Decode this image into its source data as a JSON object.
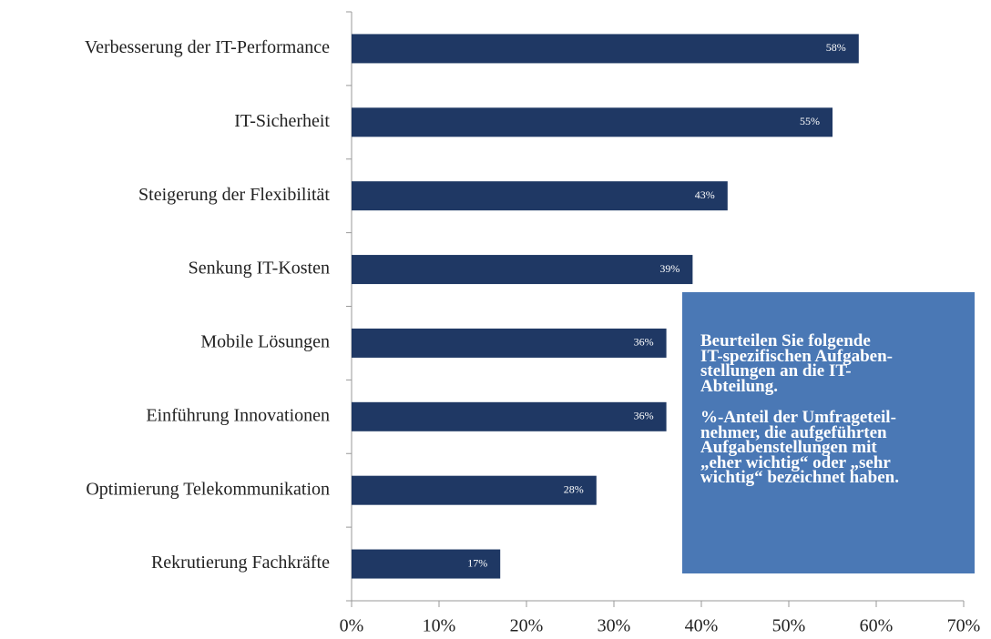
{
  "chart_data": {
    "type": "barh",
    "categories": [
      "Verbesserung der IT-Performance",
      "IT-Sicherheit",
      "Steigerung der Flexibilität",
      "Senkung IT-Kosten",
      "Mobile Lösungen",
      "Einführung Innovationen",
      "Optimierung Telekommunikation",
      "Rekrutierung Fachkräfte"
    ],
    "values": [
      58,
      55,
      43,
      39,
      36,
      36,
      28,
      17
    ],
    "value_labels": [
      "58%",
      "55%",
      "43%",
      "39%",
      "36%",
      "36%",
      "28%",
      "17%"
    ],
    "color": "#1f3864",
    "xlim": [
      0,
      70
    ],
    "xticks": [
      {
        "value": 0,
        "label": "0%"
      },
      {
        "value": 10,
        "label": "10%"
      },
      {
        "value": 20,
        "label": "20%"
      },
      {
        "value": 30,
        "label": "30%"
      },
      {
        "value": 40,
        "label": "40%"
      },
      {
        "value": 50,
        "label": "50%"
      },
      {
        "value": 60,
        "label": "60%"
      },
      {
        "value": 70,
        "label": "70%"
      }
    ],
    "grid": false,
    "annotation": [
      [
        "Beurteilen Sie folgende",
        "IT-spezifischen Aufgaben-",
        "stellungen an die IT-",
        "Abteilung."
      ],
      [
        "%-Anteil der Umfrageteil-",
        "nehmer, die aufgeführten",
        "Aufgabenstellungen mit",
        "„eher wichtig“ oder „sehr",
        "wichtig“ bezeichnet haben."
      ]
    ]
  }
}
